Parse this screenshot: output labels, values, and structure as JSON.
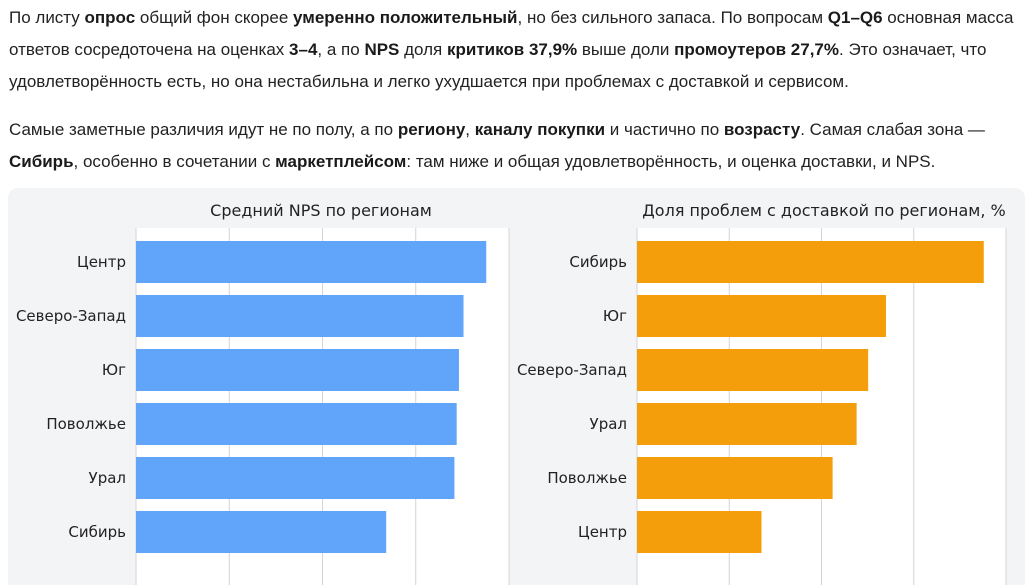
{
  "summary": {
    "p1": [
      {
        "t": "По листу ",
        "b": false
      },
      {
        "t": "опрос",
        "b": true
      },
      {
        "t": " общий фон скорее ",
        "b": false
      },
      {
        "t": "умеренно положительный",
        "b": true
      },
      {
        "t": ", но без сильного запаса. По вопросам ",
        "b": false
      },
      {
        "t": "Q1–Q6",
        "b": true
      },
      {
        "t": " основная масса ответов сосредоточена на оценках ",
        "b": false
      },
      {
        "t": "3–4",
        "b": true
      },
      {
        "t": ", а по ",
        "b": false
      },
      {
        "t": "NPS",
        "b": true
      },
      {
        "t": " доля ",
        "b": false
      },
      {
        "t": "критиков 37,9%",
        "b": true
      },
      {
        "t": " выше доли ",
        "b": false
      },
      {
        "t": "промоутеров 27,7%",
        "b": true
      },
      {
        "t": ". Это означает, что удовлетворённость есть, но она нестабильна и легко ухудшается при проблемах с доставкой и сервисом.",
        "b": false
      }
    ],
    "p2": [
      {
        "t": "Самые заметные различия идут не по полу, а по ",
        "b": false
      },
      {
        "t": "региону",
        "b": true
      },
      {
        "t": ", ",
        "b": false
      },
      {
        "t": "каналу покупки",
        "b": true
      },
      {
        "t": " и частично по ",
        "b": false
      },
      {
        "t": "возрасту",
        "b": true
      },
      {
        "t": ". Самая слабая зона — ",
        "b": false
      },
      {
        "t": "Сибирь",
        "b": true
      },
      {
        "t": ", особенно в сочетании с ",
        "b": false
      },
      {
        "t": "маркетплейсом",
        "b": true
      },
      {
        "t": ": там ниже и общая удовлетворённость, и оценка доставки, и NPS.",
        "b": false
      }
    ]
  },
  "chart_data": [
    {
      "type": "bar",
      "orientation": "horizontal",
      "title": "Средний NPS по регионам",
      "categories": [
        "Центр",
        "Северо-Запад",
        "Юг",
        "Поволжье",
        "Урал",
        "Сибирь"
      ],
      "values": [
        7.7,
        7.2,
        7.1,
        7.05,
        7.0,
        5.5
      ],
      "xlim": [
        0,
        8.2
      ],
      "grid": true,
      "color": "#60a5fa"
    },
    {
      "type": "bar",
      "orientation": "horizontal",
      "title": "Доля проблем с доставкой по регионам, %",
      "categories": [
        "Сибирь",
        "Юг",
        "Северо-Запад",
        "Урал",
        "Поволжье",
        "Центр"
      ],
      "values": [
        39,
        28,
        26,
        24.7,
        22,
        14
      ],
      "xlim": [
        0,
        41.5
      ],
      "grid": true,
      "color": "#f59e0b"
    }
  ]
}
